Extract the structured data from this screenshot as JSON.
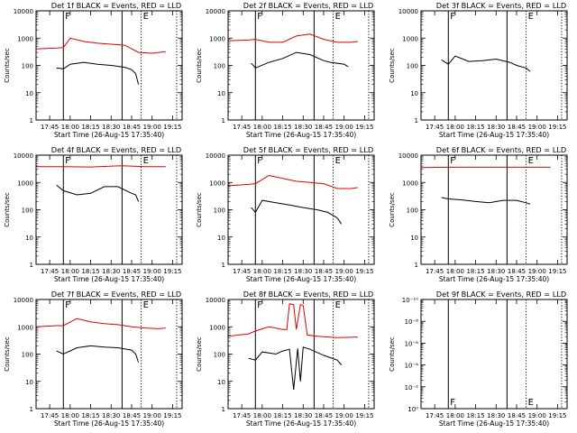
{
  "figure": {
    "bg": "#ffffff",
    "axis_color": "#000000",
    "events_color": "#000000",
    "lld_color": "#e00000"
  },
  "chart_data": [
    {
      "type": "line",
      "title": "Det 1f BLACK = Events, RED = LLD",
      "xlabel": "Start Time (26-Aug-15 17:35:40)",
      "ylabel": "Counts/sec",
      "x_ticks": [
        "17:45",
        "18:00",
        "18:15",
        "18:30",
        "18:45",
        "19:00",
        "19:15"
      ],
      "yscale": "log",
      "ylim": [
        1,
        10000
      ],
      "y_ticks": [
        "1",
        "10",
        "100",
        "1000",
        "10000"
      ],
      "solid_markers": [
        "17:55",
        "18:38"
      ],
      "dotted_markers": [
        "18:52",
        "19:18"
      ],
      "marker_labels": [
        "F",
        "E"
      ],
      "series": [
        {
          "name": "LLD",
          "x": [
            "17:35",
            "17:50",
            "17:55",
            "18:00",
            "18:10",
            "18:20",
            "18:30",
            "18:40",
            "18:50",
            "19:00",
            "19:10"
          ],
          "values": [
            400,
            430,
            450,
            1000,
            750,
            650,
            600,
            550,
            300,
            280,
            320
          ]
        },
        {
          "name": "Events",
          "x": [
            "17:50",
            "17:55",
            "18:00",
            "18:10",
            "18:20",
            "18:30",
            "18:40",
            "18:45",
            "18:48",
            "18:50"
          ],
          "values": [
            80,
            75,
            110,
            130,
            110,
            100,
            85,
            70,
            50,
            20
          ]
        }
      ]
    },
    {
      "type": "line",
      "title": "Det 2f BLACK = Events, RED = LLD",
      "xlabel": "Start Time (26-Aug-15 17:35:40)",
      "ylabel": "Counts/sec",
      "x_ticks": [
        "17:45",
        "18:00",
        "18:15",
        "18:30",
        "18:45",
        "19:00",
        "19:15"
      ],
      "yscale": "log",
      "ylim": [
        1,
        10000
      ],
      "y_ticks": [
        "1",
        "10",
        "100",
        "1000",
        "10000"
      ],
      "solid_markers": [
        "17:55",
        "18:38"
      ],
      "dotted_markers": [
        "18:52",
        "19:18"
      ],
      "marker_labels": [
        "F",
        "E"
      ],
      "series": [
        {
          "name": "LLD",
          "x": [
            "17:35",
            "17:50",
            "17:55",
            "18:05",
            "18:15",
            "18:25",
            "18:35",
            "18:45",
            "18:55",
            "19:05",
            "19:10"
          ],
          "values": [
            800,
            850,
            900,
            700,
            700,
            1200,
            1400,
            900,
            700,
            700,
            750
          ]
        },
        {
          "name": "Events",
          "x": [
            "17:52",
            "17:55",
            "18:05",
            "18:15",
            "18:25",
            "18:35",
            "18:45",
            "18:50",
            "19:00",
            "19:03"
          ],
          "values": [
            120,
            80,
            130,
            180,
            300,
            250,
            150,
            130,
            110,
            90
          ]
        }
      ]
    },
    {
      "type": "line",
      "title": "Det 3f BLACK = Events, RED = LLD",
      "xlabel": "Start Time (26-Aug-15 17:35:40)",
      "ylabel": "Counts/sec",
      "x_ticks": [
        "17:45",
        "18:00",
        "18:15",
        "18:30",
        "18:45",
        "19:00",
        "19:15"
      ],
      "yscale": "log",
      "ylim": [
        1,
        10000
      ],
      "y_ticks": [
        "1",
        "10",
        "100",
        "1000",
        "10000"
      ],
      "solid_markers": [
        "17:55",
        "18:38"
      ],
      "dotted_markers": [
        "18:52",
        "19:18"
      ],
      "marker_labels": [
        "F",
        "E"
      ],
      "series": [
        {
          "name": "Events",
          "x": [
            "17:50",
            "17:55",
            "18:00",
            "18:10",
            "18:20",
            "18:30",
            "18:40",
            "18:45",
            "18:52",
            "18:55"
          ],
          "values": [
            160,
            110,
            220,
            140,
            150,
            170,
            130,
            100,
            80,
            60
          ]
        }
      ]
    },
    {
      "type": "line",
      "title": "Det 4f BLACK = Events, RED = LLD",
      "xlabel": "Start Time (26-Aug-15 17:35:40)",
      "ylabel": "Counts/sec",
      "x_ticks": [
        "17:45",
        "18:00",
        "18:15",
        "18:30",
        "18:45",
        "19:00",
        "19:15"
      ],
      "yscale": "log",
      "ylim": [
        1,
        10000
      ],
      "y_ticks": [
        "1",
        "10",
        "100",
        "1000",
        "10000"
      ],
      "solid_markers": [
        "17:55",
        "18:38"
      ],
      "dotted_markers": [
        "18:52",
        "19:18"
      ],
      "marker_labels": [
        "F",
        "E"
      ],
      "series": [
        {
          "name": "LLD",
          "x": [
            "17:35",
            "17:55",
            "18:15",
            "18:38",
            "18:55",
            "19:10"
          ],
          "values": [
            3800,
            3800,
            3700,
            4100,
            3800,
            3800
          ]
        },
        {
          "name": "Events",
          "x": [
            "17:50",
            "17:55",
            "18:05",
            "18:15",
            "18:25",
            "18:35",
            "18:45",
            "18:48",
            "18:50"
          ],
          "values": [
            800,
            500,
            350,
            400,
            700,
            700,
            400,
            350,
            200
          ]
        }
      ]
    },
    {
      "type": "line",
      "title": "Det 5f BLACK = Events, RED = LLD",
      "xlabel": "Start Time (26-Aug-15 17:35:40)",
      "ylabel": "Counts/sec",
      "x_ticks": [
        "17:45",
        "18:00",
        "18:15",
        "18:30",
        "18:45",
        "19:00",
        "19:15"
      ],
      "yscale": "log",
      "ylim": [
        1,
        10000
      ],
      "y_ticks": [
        "1",
        "10",
        "100",
        "1000",
        "10000"
      ],
      "solid_markers": [
        "17:55",
        "18:38"
      ],
      "dotted_markers": [
        "18:52",
        "19:18"
      ],
      "marker_labels": [
        "F",
        "E"
      ],
      "series": [
        {
          "name": "LLD",
          "x": [
            "17:35",
            "17:50",
            "17:55",
            "18:05",
            "18:15",
            "18:25",
            "18:35",
            "18:45",
            "18:55",
            "19:05",
            "19:10"
          ],
          "values": [
            750,
            850,
            900,
            1800,
            1400,
            1100,
            1000,
            900,
            600,
            600,
            650
          ]
        },
        {
          "name": "Events",
          "x": [
            "17:52",
            "17:55",
            "18:00",
            "18:10",
            "18:20",
            "18:30",
            "18:40",
            "18:48",
            "18:55",
            "18:58"
          ],
          "values": [
            120,
            80,
            220,
            180,
            150,
            120,
            100,
            80,
            50,
            30
          ]
        }
      ]
    },
    {
      "type": "line",
      "title": "Det 6f BLACK = Events, RED = LLD",
      "xlabel": "Start Time (26-Aug-15 17:35:40)",
      "ylabel": "Counts/sec",
      "x_ticks": [
        "17:45",
        "18:00",
        "18:15",
        "18:30",
        "18:45",
        "19:00",
        "19:15"
      ],
      "yscale": "log",
      "ylim": [
        1,
        10000
      ],
      "y_ticks": [
        "1",
        "10",
        "100",
        "1000",
        "10000"
      ],
      "solid_markers": [
        "17:55",
        "18:38"
      ],
      "dotted_markers": [
        "18:52",
        "19:18"
      ],
      "marker_labels": [
        "F",
        "E"
      ],
      "series": [
        {
          "name": "LLD",
          "x": [
            "17:35",
            "17:55",
            "18:15",
            "18:38",
            "18:55",
            "19:10"
          ],
          "values": [
            3500,
            3600,
            3600,
            3600,
            3600,
            3600
          ]
        },
        {
          "name": "Events",
          "x": [
            "17:50",
            "17:55",
            "18:05",
            "18:15",
            "18:25",
            "18:35",
            "18:45",
            "18:52",
            "18:55"
          ],
          "values": [
            280,
            250,
            230,
            200,
            180,
            220,
            220,
            180,
            160
          ]
        }
      ]
    },
    {
      "type": "line",
      "title": "Det 7f BLACK = Events, RED = LLD",
      "xlabel": "Start Time (26-Aug-15 17:35:40)",
      "ylabel": "Counts/sec",
      "x_ticks": [
        "17:45",
        "18:00",
        "18:15",
        "18:30",
        "18:45",
        "19:00",
        "19:15"
      ],
      "yscale": "log",
      "ylim": [
        1,
        10000
      ],
      "y_ticks": [
        "1",
        "10",
        "100",
        "1000",
        "10000"
      ],
      "solid_markers": [
        "17:55",
        "18:38"
      ],
      "dotted_markers": [
        "18:52",
        "19:18"
      ],
      "marker_labels": [
        "F",
        "E"
      ],
      "series": [
        {
          "name": "LLD",
          "x": [
            "17:35",
            "17:50",
            "17:55",
            "18:05",
            "18:15",
            "18:25",
            "18:35",
            "18:45",
            "18:55",
            "19:05",
            "19:10"
          ],
          "values": [
            1000,
            1100,
            1100,
            2000,
            1500,
            1300,
            1200,
            1000,
            900,
            850,
            900
          ]
        },
        {
          "name": "Events",
          "x": [
            "17:50",
            "17:55",
            "18:05",
            "18:15",
            "18:25",
            "18:35",
            "18:45",
            "18:48",
            "18:50"
          ],
          "values": [
            130,
            100,
            170,
            200,
            180,
            170,
            140,
            100,
            50
          ]
        }
      ]
    },
    {
      "type": "line",
      "title": "Det 8f BLACK = Events, RED = LLD",
      "xlabel": "Start Time (26-Aug-15 17:35:40)",
      "ylabel": "Counts/sec",
      "x_ticks": [
        "17:45",
        "18:00",
        "18:15",
        "18:30",
        "18:45",
        "19:00",
        "19:15"
      ],
      "yscale": "log",
      "ylim": [
        1,
        10000
      ],
      "y_ticks": [
        "1",
        "10",
        "100",
        "1000",
        "10000"
      ],
      "solid_markers": [
        "17:55",
        "18:38"
      ],
      "dotted_markers": [
        "18:52",
        "19:18"
      ],
      "marker_labels": [
        "F",
        "E"
      ],
      "series": [
        {
          "name": "LLD",
          "x": [
            "17:35",
            "17:50",
            "17:55",
            "18:05",
            "18:15",
            "18:18",
            "18:20",
            "18:23",
            "18:25",
            "18:28",
            "18:30",
            "18:33",
            "18:40",
            "18:55",
            "19:10"
          ],
          "values": [
            450,
            550,
            700,
            1000,
            800,
            800,
            7000,
            6500,
            800,
            6500,
            6000,
            500,
            450,
            400,
            420
          ]
        },
        {
          "name": "Events",
          "x": [
            "17:50",
            "17:55",
            "18:00",
            "18:10",
            "18:15",
            "18:20",
            "18:23",
            "18:26",
            "18:28",
            "18:30",
            "18:35",
            "18:45",
            "18:55",
            "18:58"
          ],
          "values": [
            70,
            60,
            120,
            100,
            130,
            150,
            5,
            160,
            10,
            180,
            150,
            90,
            60,
            40
          ]
        }
      ]
    },
    {
      "type": "line",
      "title": "Det 9f BLACK = Events, RED = LLD",
      "xlabel": "Start Time (26-Aug-15 17:35:40)",
      "ylabel": "Counts/sec",
      "x_ticks": [
        "17:45",
        "18:00",
        "18:15",
        "18:30",
        "18:45",
        "19:00",
        "19:15"
      ],
      "yscale": "log",
      "ylim": [
        1,
        1e-10
      ],
      "y_ticks": [
        "10⁰",
        "10⁻²",
        "10⁻⁴",
        "10⁻⁶",
        "10⁻⁸",
        "10⁻¹⁰"
      ],
      "solid_markers": [
        "17:55",
        "18:38"
      ],
      "dotted_markers": [
        "18:52",
        "19:18"
      ],
      "marker_labels": [
        "F",
        "E"
      ],
      "series": []
    }
  ]
}
